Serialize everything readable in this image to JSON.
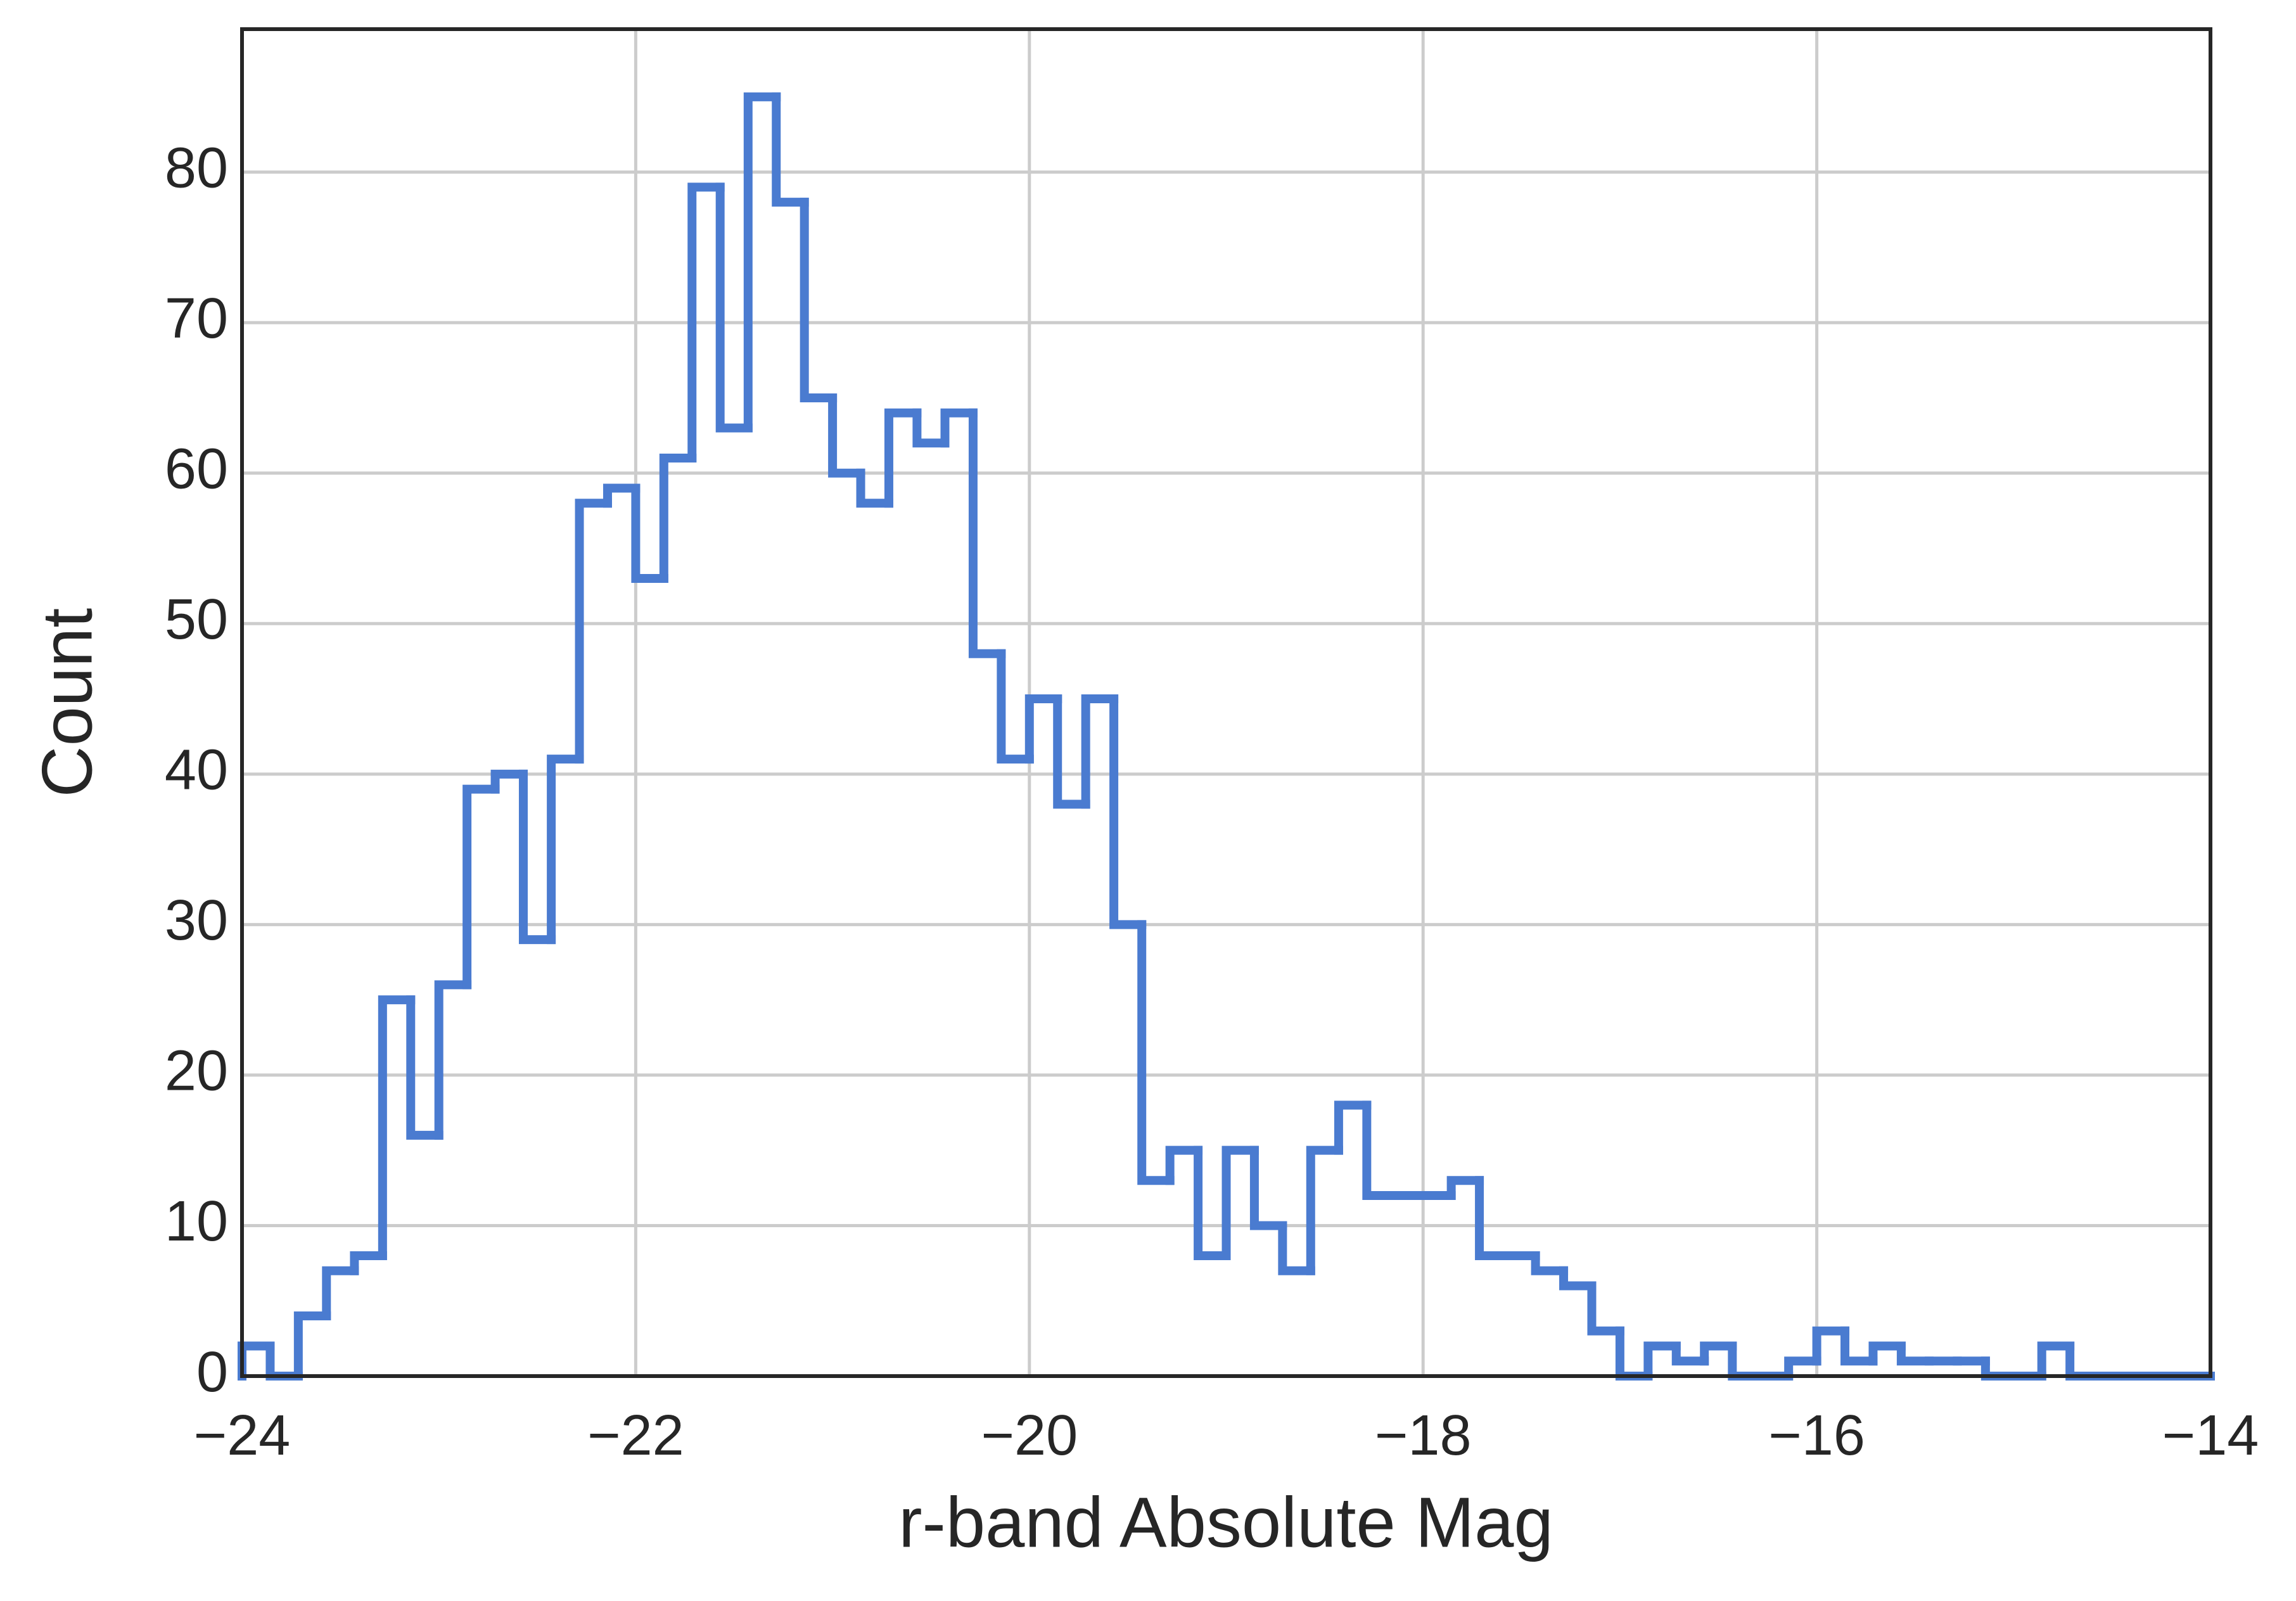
{
  "chart_data": {
    "type": "histogram",
    "xlabel": "r-band Absolute Mag",
    "ylabel": "Count",
    "bins": [
      -24,
      -23.857,
      -23.714,
      -23.571,
      -23.429,
      -23.286,
      -23.143,
      -23,
      -22.857,
      -22.714,
      -22.571,
      -22.429,
      -22.286,
      -22.143,
      -22,
      -21.857,
      -21.714,
      -21.571,
      -21.429,
      -21.286,
      -21.143,
      -21,
      -20.857,
      -20.714,
      -20.571,
      -20.429,
      -20.286,
      -20.143,
      -20,
      -19.857,
      -19.714,
      -19.571,
      -19.429,
      -19.286,
      -19.143,
      -19,
      -18.857,
      -18.714,
      -18.571,
      -18.429,
      -18.286,
      -18.143,
      -18,
      -17.857,
      -17.714,
      -17.571,
      -17.429,
      -17.286,
      -17.143,
      -17,
      -16.857,
      -16.714,
      -16.571,
      -16.429,
      -16.286,
      -16.143,
      -16,
      -15.857,
      -15.714,
      -15.571,
      -15.429,
      -15.286,
      -15.143,
      -15,
      -14.857,
      -14.714,
      -14.571,
      -14.429,
      -14.286,
      -14.143,
      -14
    ],
    "values": [
      2,
      0,
      4,
      7,
      8,
      25,
      16,
      26,
      39,
      40,
      29,
      41,
      58,
      59,
      53,
      61,
      79,
      63,
      85,
      78,
      65,
      60,
      58,
      64,
      62,
      64,
      48,
      41,
      45,
      38,
      45,
      30,
      13,
      15,
      8,
      15,
      10,
      7,
      15,
      18,
      12,
      12,
      12,
      13,
      8,
      8,
      7,
      6,
      3,
      0,
      2,
      1,
      2,
      0,
      0,
      1,
      3,
      1,
      2,
      1,
      1,
      1,
      0,
      0,
      2,
      0,
      0,
      0,
      0,
      0
    ],
    "color": "#4a7bd0",
    "xlim": [
      -24,
      -14
    ],
    "xticks": [
      {
        "value": -24,
        "label": "−24"
      },
      {
        "value": -22,
        "label": "−22"
      },
      {
        "value": -20,
        "label": "−20"
      },
      {
        "value": -18,
        "label": "−18"
      },
      {
        "value": -16,
        "label": "−16"
      },
      {
        "value": -14,
        "label": "−14"
      }
    ],
    "ylim": [
      0,
      89.5
    ],
    "yticks": [
      0,
      10,
      20,
      30,
      40,
      50,
      60,
      70,
      80
    ],
    "grid": true
  }
}
